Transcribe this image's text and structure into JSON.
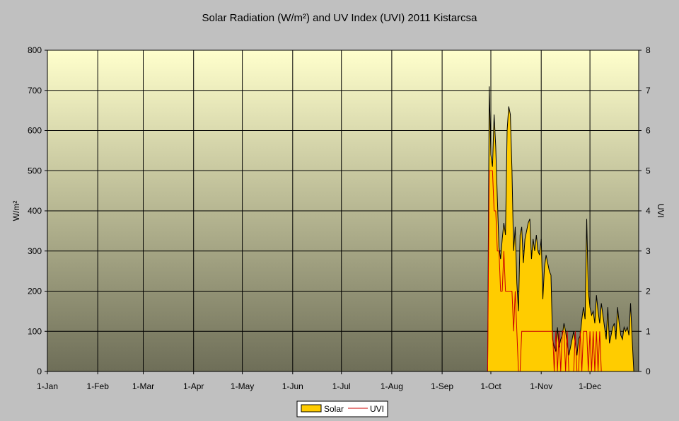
{
  "chart_data": {
    "type": "area",
    "title": "Solar Radiation (W/m²) and UV Index (UVI) 2011 Kistarcsa",
    "ylabel": "W/m²",
    "y2label": "UVI",
    "ylim": [
      0,
      800
    ],
    "y2lim": [
      0,
      8
    ],
    "yticks": [
      "0",
      "100",
      "200",
      "300",
      "400",
      "500",
      "600",
      "700",
      "800"
    ],
    "y2ticks": [
      "0",
      "1",
      "2",
      "3",
      "4",
      "5",
      "6",
      "7",
      "8"
    ],
    "xlim": [
      "2011-01-01",
      "2011-12-31"
    ],
    "xticks": [
      {
        "date": "2011-01-01",
        "label": "1-Jan"
      },
      {
        "date": "2011-02-01",
        "label": "1-Feb"
      },
      {
        "date": "2011-03-01",
        "label": "1-Mar"
      },
      {
        "date": "2011-04-01",
        "label": "1-Apr"
      },
      {
        "date": "2011-05-01",
        "label": "1-May"
      },
      {
        "date": "2011-06-01",
        "label": "1-Jun"
      },
      {
        "date": "2011-07-01",
        "label": "1-Jul"
      },
      {
        "date": "2011-08-01",
        "label": "1-Aug"
      },
      {
        "date": "2011-09-01",
        "label": "1-Sep"
      },
      {
        "date": "2011-10-01",
        "label": "1-Oct"
      },
      {
        "date": "2011-11-01",
        "label": "1-Nov"
      },
      {
        "date": "2011-12-01",
        "label": "1-Dec"
      }
    ],
    "grid": true,
    "legend_position": "bottom",
    "series": [
      {
        "name": "Solar",
        "kind": "area",
        "axis": "left",
        "color": "#ffcc00",
        "x": [
          "2011-09-29",
          "2011-09-30",
          "2011-10-01",
          "2011-10-02",
          "2011-10-03",
          "2011-10-04",
          "2011-10-05",
          "2011-10-06",
          "2011-10-07",
          "2011-10-08",
          "2011-10-09",
          "2011-10-10",
          "2011-10-11",
          "2011-10-12",
          "2011-10-13",
          "2011-10-14",
          "2011-10-15",
          "2011-10-16",
          "2011-10-17",
          "2011-10-18",
          "2011-10-19",
          "2011-10-20",
          "2011-10-21",
          "2011-10-22",
          "2011-10-23",
          "2011-10-24",
          "2011-10-25",
          "2011-10-26",
          "2011-10-27",
          "2011-10-28",
          "2011-10-29",
          "2011-10-30",
          "2011-10-31",
          "2011-11-01",
          "2011-11-02",
          "2011-11-03",
          "2011-11-04",
          "2011-11-05",
          "2011-11-06",
          "2011-11-07",
          "2011-11-08",
          "2011-11-09",
          "2011-11-10",
          "2011-11-11",
          "2011-11-12",
          "2011-11-13",
          "2011-11-14",
          "2011-11-15",
          "2011-11-16",
          "2011-11-17",
          "2011-11-18",
          "2011-11-19",
          "2011-11-20",
          "2011-11-21",
          "2011-11-22",
          "2011-11-23",
          "2011-11-24",
          "2011-11-25",
          "2011-11-26",
          "2011-11-27",
          "2011-11-28",
          "2011-11-29",
          "2011-11-30",
          "2011-12-01",
          "2011-12-02",
          "2011-12-03",
          "2011-12-04",
          "2011-12-05",
          "2011-12-06",
          "2011-12-07",
          "2011-12-08",
          "2011-12-09",
          "2011-12-10",
          "2011-12-11",
          "2011-12-12",
          "2011-12-13",
          "2011-12-14",
          "2011-12-15",
          "2011-12-16",
          "2011-12-17",
          "2011-12-18",
          "2011-12-19",
          "2011-12-20",
          "2011-12-21",
          "2011-12-22",
          "2011-12-23",
          "2011-12-24",
          "2011-12-25",
          "2011-12-26",
          "2011-12-27",
          "2011-12-28",
          "2011-12-29",
          "2011-12-30",
          "2011-12-31"
        ],
        "values": [
          0,
          710,
          540,
          510,
          640,
          560,
          430,
          310,
          280,
          330,
          370,
          340,
          600,
          660,
          640,
          500,
          300,
          360,
          220,
          150,
          340,
          360,
          270,
          330,
          350,
          370,
          380,
          280,
          330,
          300,
          340,
          300,
          290,
          330,
          180,
          260,
          290,
          270,
          250,
          240,
          80,
          60,
          50,
          110,
          60,
          80,
          90,
          120,
          100,
          70,
          40,
          60,
          80,
          100,
          70,
          40,
          80,
          90,
          130,
          160,
          130,
          380,
          200,
          160,
          140,
          150,
          120,
          190,
          150,
          120,
          170,
          140,
          110,
          80,
          160,
          70,
          90,
          110,
          120,
          80,
          160,
          120,
          90,
          80,
          110,
          100,
          110,
          90,
          170,
          80,
          0,
          0,
          0,
          0
        ]
      },
      {
        "name": "UVI",
        "kind": "line",
        "axis": "right",
        "color": "#cc0000",
        "x": [
          "2011-09-29",
          "2011-09-30",
          "2011-10-01",
          "2011-10-02",
          "2011-10-03",
          "2011-10-04",
          "2011-10-05",
          "2011-10-06",
          "2011-10-07",
          "2011-10-08",
          "2011-10-09",
          "2011-10-10",
          "2011-10-11",
          "2011-10-12",
          "2011-10-13",
          "2011-10-14",
          "2011-10-15",
          "2011-10-16",
          "2011-10-17",
          "2011-10-18",
          "2011-10-19",
          "2011-10-20",
          "2011-10-21",
          "2011-10-22",
          "2011-10-23",
          "2011-10-24",
          "2011-10-25",
          "2011-10-26",
          "2011-10-27",
          "2011-10-28",
          "2011-10-29",
          "2011-10-30",
          "2011-10-31",
          "2011-11-01",
          "2011-11-02",
          "2011-11-03",
          "2011-11-04",
          "2011-11-05",
          "2011-11-06",
          "2011-11-07",
          "2011-11-08",
          "2011-11-09",
          "2011-11-10",
          "2011-11-11",
          "2011-11-12",
          "2011-11-13",
          "2011-11-14",
          "2011-11-15",
          "2011-11-16",
          "2011-11-17",
          "2011-11-18",
          "2011-11-19",
          "2011-11-20",
          "2011-11-21",
          "2011-11-22",
          "2011-11-23",
          "2011-11-24",
          "2011-11-25",
          "2011-11-26",
          "2011-11-27",
          "2011-11-28",
          "2011-11-29",
          "2011-11-30",
          "2011-12-01",
          "2011-12-02",
          "2011-12-03",
          "2011-12-04",
          "2011-12-05",
          "2011-12-06",
          "2011-12-07",
          "2011-12-08",
          "2011-12-09",
          "2011-12-10",
          "2011-12-11",
          "2011-12-12",
          "2011-12-13",
          "2011-12-14",
          "2011-12-15",
          "2011-12-16",
          "2011-12-17",
          "2011-12-18",
          "2011-12-19",
          "2011-12-20",
          "2011-12-21",
          "2011-12-22",
          "2011-12-23",
          "2011-12-24",
          "2011-12-25",
          "2011-12-26",
          "2011-12-27",
          "2011-12-28",
          "2011-12-29",
          "2011-12-30",
          "2011-12-31"
        ],
        "values": [
          0,
          5,
          5,
          5,
          4,
          4,
          3,
          3,
          2,
          2,
          3,
          2,
          2,
          2,
          2,
          2,
          1,
          2,
          1,
          0,
          0,
          1,
          1,
          1,
          1,
          1,
          1,
          1,
          1,
          1,
          1,
          1,
          1,
          1,
          1,
          1,
          1,
          1,
          1,
          1,
          1,
          0,
          1,
          0,
          1,
          0,
          1,
          1,
          0,
          1,
          0,
          0,
          0,
          0,
          1,
          0,
          0,
          1,
          0,
          1,
          1,
          1,
          0,
          1,
          0,
          1,
          0,
          1,
          0,
          1,
          0,
          0,
          0,
          0,
          0,
          0,
          0,
          0,
          0,
          0,
          0,
          0,
          0,
          0,
          0,
          0,
          0,
          0,
          0,
          0,
          0,
          0,
          0,
          0
        ]
      }
    ]
  },
  "colors": {
    "background": "#c0c0c0",
    "plot_top": "#ffffcc",
    "plot_bottom": "#6e6e58",
    "solar": "#ffcc00",
    "uvi": "#cc0000"
  }
}
